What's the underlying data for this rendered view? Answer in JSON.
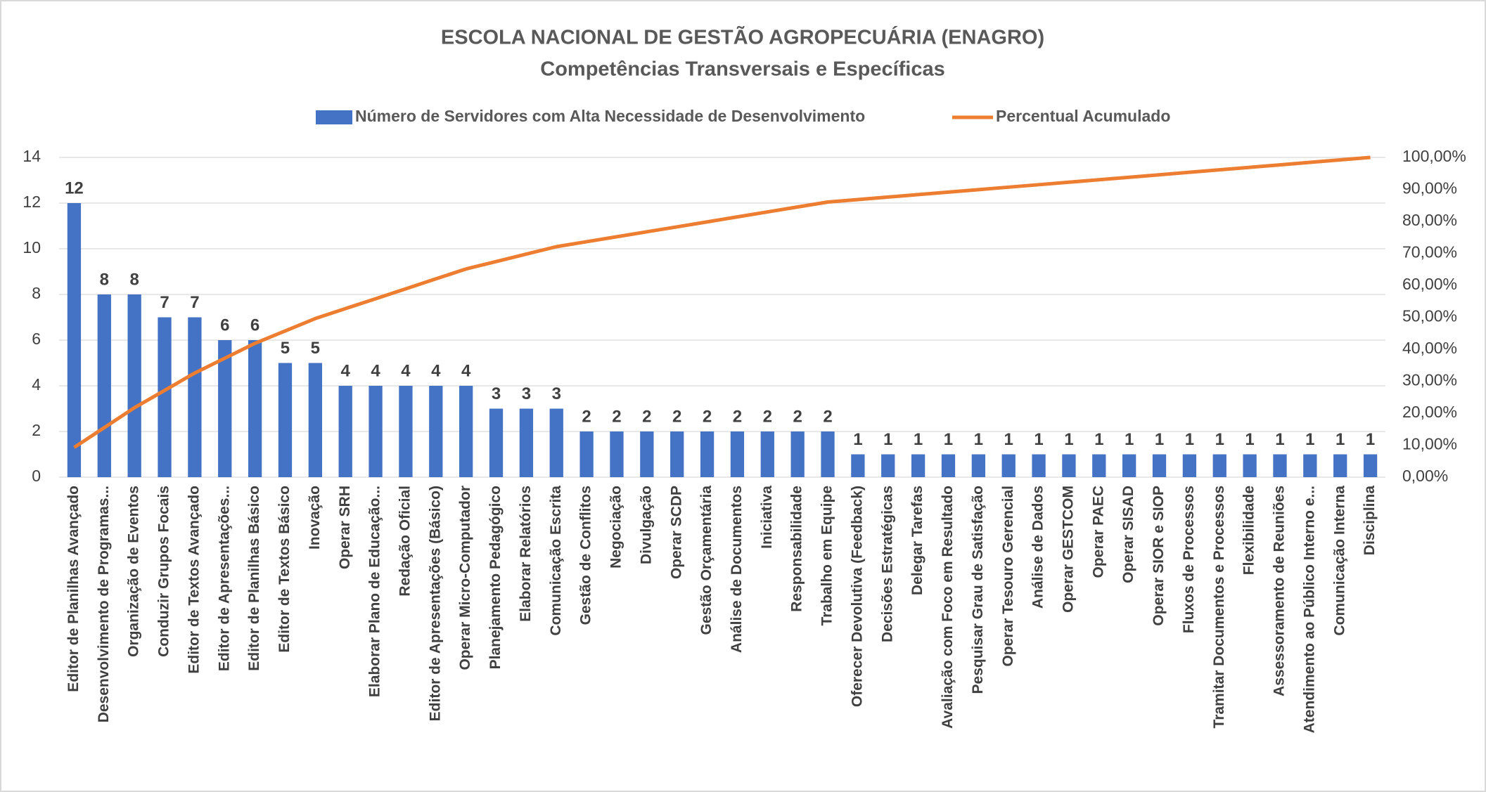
{
  "chart_data": {
    "type": "bar_line",
    "title": "ESCOLA NACIONAL DE GESTÃO AGROPECUÁRIA (ENAGRO)",
    "subtitle": "Competências Transversais e Específicas",
    "categories": [
      "Editor de Planilhas Avançado",
      "Desenvolvimento de Programas...",
      "Organização de Eventos",
      "Conduzir Grupos Focais",
      "Editor de Textos Avançado",
      "Editor de Apresentações...",
      "Editor de Planilhas Básico",
      "Editor de Textos Básico",
      "Inovação",
      "Operar SRH",
      "Elaborar Plano de Educação...",
      "Redação Oficial",
      "Editor de Apresentações (Básico)",
      "Operar Micro-Computador",
      "Planejamento Pedagógico",
      "Elaborar Relatórios",
      "Comunicação Escrita",
      "Gestão de Conflitos",
      "Negociação",
      "Divulgação",
      "Operar SCDP",
      "Gestão Orçamentária",
      "Análise de Documentos",
      "Iniciativa",
      "Responsabilidade",
      "Trabalho em Equipe",
      "Oferecer Devolutiva (Feedback)",
      "Decisões Estratégicas",
      "Delegar Tarefas",
      "Avaliação com Foco em Resultado",
      "Pesquisar Grau de Satisfação",
      "Operar Tesouro Gerencial",
      "Análise de Dados",
      "Operar GESTCOM",
      "Operar PAEC",
      "Operar SISAD",
      "Operar SIOR e SIOP",
      "Fluxos de Processos",
      "Tramitar Documentos e Processos",
      "Flexibilidade",
      "Assessoramento de Reuniões",
      "Atendimento ao Público Interno e...",
      "Comunicação Interna",
      "Disciplina"
    ],
    "series": [
      {
        "name": "Número de Servidores com Alta Necessidade de Desenvolvimento",
        "type": "bar",
        "color": "#4472c4",
        "values": [
          12,
          8,
          8,
          7,
          7,
          6,
          6,
          5,
          5,
          4,
          4,
          4,
          4,
          4,
          3,
          3,
          3,
          2,
          2,
          2,
          2,
          2,
          2,
          2,
          2,
          2,
          1,
          1,
          1,
          1,
          1,
          1,
          1,
          1,
          1,
          1,
          1,
          1,
          1,
          1,
          1,
          1,
          1,
          1
        ]
      },
      {
        "name": "Percentual Acumulado",
        "type": "line",
        "color": "#ed7d31",
        "axis": "y2",
        "values": [
          9.3,
          15.5,
          21.71,
          27.13,
          32.56,
          37.21,
          41.86,
          45.74,
          49.61,
          52.71,
          55.81,
          58.91,
          62.02,
          65.12,
          67.44,
          69.77,
          72.09,
          73.64,
          75.19,
          76.74,
          78.29,
          79.84,
          81.4,
          82.95,
          84.5,
          86.05,
          86.82,
          87.6,
          88.37,
          89.15,
          89.92,
          90.7,
          91.47,
          92.25,
          93.02,
          93.8,
          94.57,
          95.35,
          96.12,
          96.9,
          97.67,
          98.45,
          99.22,
          100
        ]
      }
    ],
    "ylim": [
      0,
      14
    ],
    "yticks": [
      0,
      2,
      4,
      6,
      8,
      10,
      12,
      14
    ],
    "y2lim": [
      0,
      100
    ],
    "y2ticks": [
      {
        "value": 0,
        "label": "0,00%"
      },
      {
        "value": 10,
        "label": "10,00%"
      },
      {
        "value": 20,
        "label": "20,00%"
      },
      {
        "value": 30,
        "label": "30,00%"
      },
      {
        "value": 40,
        "label": "40,00%"
      },
      {
        "value": 50,
        "label": "50,00%"
      },
      {
        "value": 60,
        "label": "60,00%"
      },
      {
        "value": 70,
        "label": "70,00%"
      },
      {
        "value": 80,
        "label": "80,00%"
      },
      {
        "value": 90,
        "label": "90,00%"
      },
      {
        "value": 100,
        "label": "100,00%"
      }
    ],
    "grid": true,
    "legend": "top"
  }
}
